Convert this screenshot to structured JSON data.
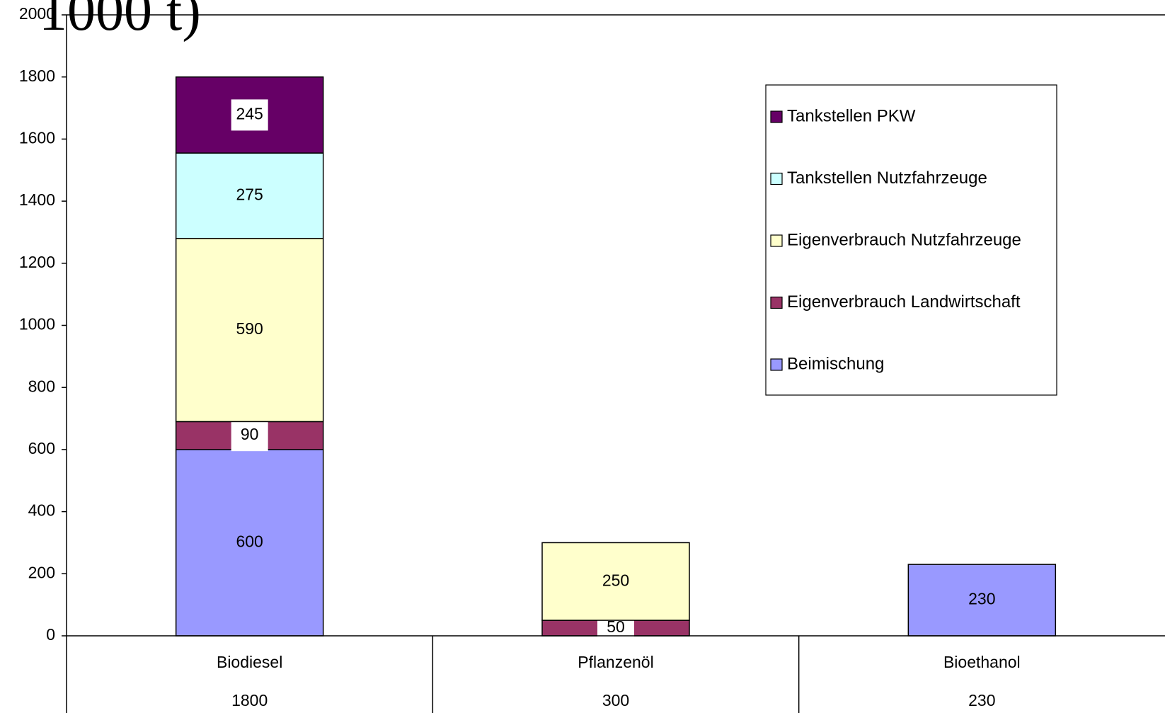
{
  "chart_data": {
    "type": "bar",
    "stacked": true,
    "title": "1000 t)",
    "categories": [
      "Biodiesel",
      "Pflanzenöl",
      "Bioethanol"
    ],
    "totals": [
      1800,
      300,
      230
    ],
    "series": [
      {
        "name": "Beimischung",
        "color": "#9999ff",
        "values": [
          600,
          null,
          230
        ]
      },
      {
        "name": "Eigenverbrauch Landwirtschaft",
        "color": "#993366",
        "values": [
          90,
          50,
          null
        ]
      },
      {
        "name": "Eigenverbrauch Nutzfahrzeuge",
        "color": "#ffffcc",
        "values": [
          590,
          250,
          null
        ]
      },
      {
        "name": "Tankstellen Nutzfahrzeuge",
        "color": "#ccffff",
        "values": [
          275,
          null,
          null
        ]
      },
      {
        "name": "Tankstellen PKW",
        "color": "#660066",
        "values": [
          245,
          null,
          null
        ]
      }
    ],
    "ylim": [
      0,
      2000
    ],
    "yticks": [
      0,
      200,
      400,
      600,
      800,
      1000,
      1200,
      1400,
      1600,
      1800,
      2000
    ],
    "legend": "upper right"
  }
}
